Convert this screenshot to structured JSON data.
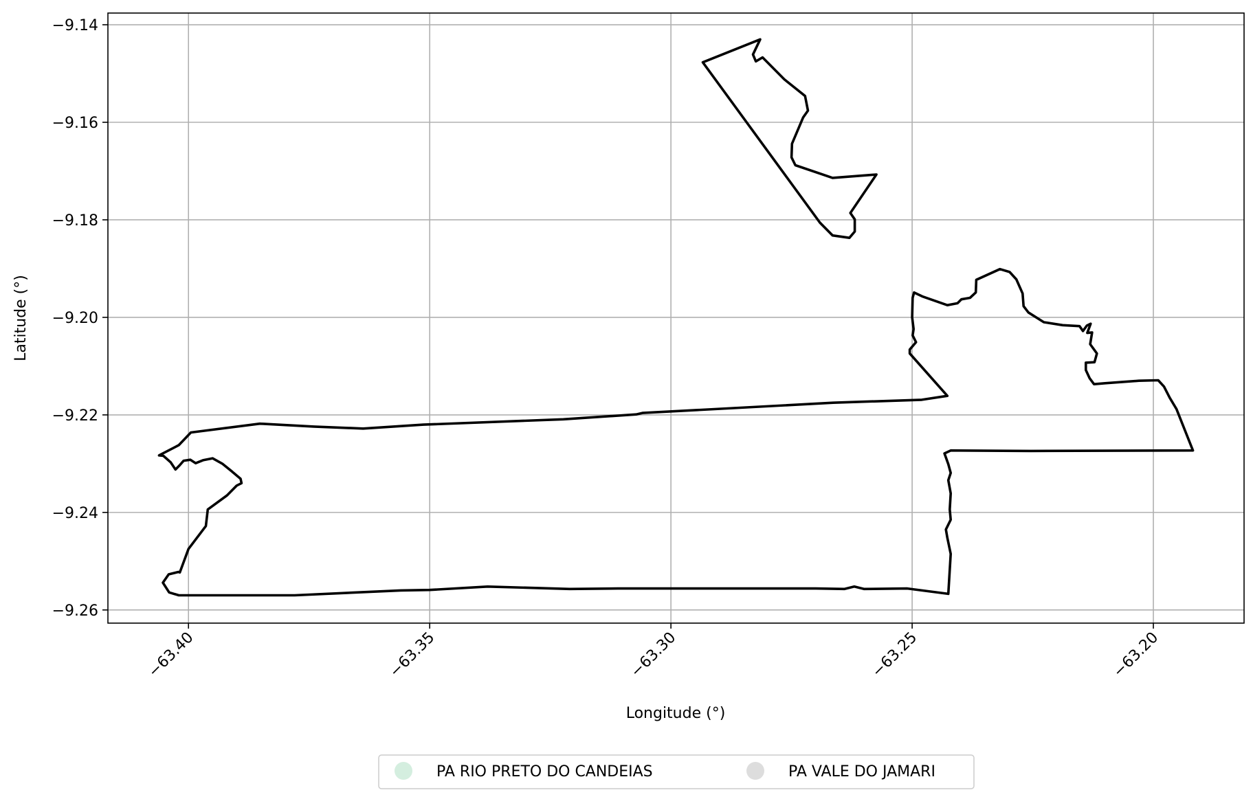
{
  "chart_data": {
    "type": "map",
    "xlabel": "Longitude (°)",
    "ylabel": "Latitude (°)",
    "xlim": [
      -63.4167,
      -63.1812
    ],
    "ylim": [
      -9.2627,
      -9.1376
    ],
    "x_ticks": [
      {
        "value": -63.4,
        "label": "−63.40"
      },
      {
        "value": -63.35,
        "label": "−63.35"
      },
      {
        "value": -63.3,
        "label": "−63.30"
      },
      {
        "value": -63.25,
        "label": "−63.25"
      },
      {
        "value": -63.2,
        "label": "−63.20"
      }
    ],
    "y_ticks": [
      {
        "value": -9.14,
        "label": "−9.14"
      },
      {
        "value": -9.16,
        "label": "−9.16"
      },
      {
        "value": -9.18,
        "label": "−9.18"
      },
      {
        "value": -9.2,
        "label": "−9.20"
      },
      {
        "value": -9.22,
        "label": "−9.22"
      },
      {
        "value": -9.24,
        "label": "−9.24"
      },
      {
        "value": -9.26,
        "label": "−9.26"
      }
    ],
    "grid": true,
    "legend": {
      "placement": "bottom-center",
      "items": [
        {
          "label": "PA RIO PRETO DO CANDEIAS",
          "color": "#d4eedf"
        },
        {
          "label": "PA VALE DO JAMARI",
          "color": "#dddddd"
        }
      ]
    },
    "boundary_color": "#000000",
    "polygons": [
      {
        "coords": [
          [
            -63.2934,
            -9.1477
          ],
          [
            -63.2815,
            -9.143
          ],
          [
            -63.283,
            -9.1461
          ],
          [
            -63.2824,
            -9.1475
          ],
          [
            -63.281,
            -9.1467
          ],
          [
            -63.2765,
            -9.1512
          ],
          [
            -63.2722,
            -9.1546
          ],
          [
            -63.2716,
            -9.1576
          ],
          [
            -63.2726,
            -9.159
          ],
          [
            -63.2749,
            -9.1644
          ],
          [
            -63.275,
            -9.1672
          ],
          [
            -63.2742,
            -9.1688
          ],
          [
            -63.2665,
            -9.1714
          ],
          [
            -63.2574,
            -9.1707
          ],
          [
            -63.2628,
            -9.1786
          ],
          [
            -63.2619,
            -9.1799
          ],
          [
            -63.2619,
            -9.1824
          ],
          [
            -63.263,
            -9.1837
          ],
          [
            -63.2665,
            -9.1832
          ],
          [
            -63.2691,
            -9.1806
          ],
          [
            -63.2934,
            -9.1477
          ]
        ]
      },
      {
        "coords": [
          [
            -63.4061,
            -9.2283
          ],
          [
            -63.402,
            -9.2262
          ],
          [
            -63.3995,
            -9.2236
          ],
          [
            -63.3852,
            -9.2218
          ],
          [
            -63.374,
            -9.2224
          ],
          [
            -63.3638,
            -9.2228
          ],
          [
            -63.3513,
            -9.222
          ],
          [
            -63.3223,
            -9.2209
          ],
          [
            -63.3072,
            -9.2199
          ],
          [
            -63.3059,
            -9.2196
          ],
          [
            -63.287,
            -9.2186
          ],
          [
            -63.2664,
            -9.2175
          ],
          [
            -63.248,
            -9.2169
          ],
          [
            -63.2427,
            -9.2161
          ],
          [
            -63.2505,
            -9.2074
          ],
          [
            -63.2505,
            -9.2066
          ],
          [
            -63.2492,
            -9.2051
          ],
          [
            -63.2499,
            -9.2037
          ],
          [
            -63.2497,
            -9.2024
          ],
          [
            -63.25,
            -9.2
          ],
          [
            -63.2499,
            -9.196
          ],
          [
            -63.2496,
            -9.1949
          ],
          [
            -63.2479,
            -9.1957
          ],
          [
            -63.2427,
            -9.1975
          ],
          [
            -63.2406,
            -9.1971
          ],
          [
            -63.2398,
            -9.1963
          ],
          [
            -63.238,
            -9.196
          ],
          [
            -63.2368,
            -9.1949
          ],
          [
            -63.2367,
            -9.1923
          ],
          [
            -63.2318,
            -9.1901
          ],
          [
            -63.2298,
            -9.1907
          ],
          [
            -63.2284,
            -9.1922
          ],
          [
            -63.2271,
            -9.1951
          ],
          [
            -63.2269,
            -9.1977
          ],
          [
            -63.2259,
            -9.199
          ],
          [
            -63.2227,
            -9.201
          ],
          [
            -63.2188,
            -9.2016
          ],
          [
            -63.2153,
            -9.2018
          ],
          [
            -63.2146,
            -9.2028
          ],
          [
            -63.2138,
            -9.2017
          ],
          [
            -63.213,
            -9.2013
          ],
          [
            -63.2137,
            -9.2032
          ],
          [
            -63.2127,
            -9.2031
          ],
          [
            -63.2131,
            -9.2055
          ],
          [
            -63.2117,
            -9.2074
          ],
          [
            -63.2122,
            -9.2092
          ],
          [
            -63.214,
            -9.2093
          ],
          [
            -63.214,
            -9.2108
          ],
          [
            -63.2132,
            -9.2125
          ],
          [
            -63.2123,
            -9.2137
          ],
          [
            -63.21,
            -9.2135
          ],
          [
            -63.203,
            -9.213
          ],
          [
            -63.199,
            -9.2129
          ],
          [
            -63.1978,
            -9.2142
          ],
          [
            -63.1966,
            -9.2165
          ],
          [
            -63.1952,
            -9.2188
          ],
          [
            -63.1918,
            -9.2273
          ],
          [
            -63.2254,
            -9.2274
          ],
          [
            -63.242,
            -9.2273
          ],
          [
            -63.2433,
            -9.2279
          ],
          [
            -63.2425,
            -9.2301
          ],
          [
            -63.242,
            -9.2319
          ],
          [
            -63.2425,
            -9.2334
          ],
          [
            -63.242,
            -9.2361
          ],
          [
            -63.2422,
            -9.2394
          ],
          [
            -63.242,
            -9.2415
          ],
          [
            -63.243,
            -9.2435
          ],
          [
            -63.2427,
            -9.2452
          ],
          [
            -63.242,
            -9.2485
          ],
          [
            -63.2425,
            -9.2567
          ],
          [
            -63.251,
            -9.2556
          ],
          [
            -63.26,
            -9.2557
          ],
          [
            -63.262,
            -9.2552
          ],
          [
            -63.264,
            -9.2557
          ],
          [
            -63.27,
            -9.2556
          ],
          [
            -63.3,
            -9.2556
          ],
          [
            -63.311,
            -9.2556
          ],
          [
            -63.321,
            -9.2557
          ],
          [
            -63.338,
            -9.2552
          ],
          [
            -63.35,
            -9.2559
          ],
          [
            -63.356,
            -9.256
          ],
          [
            -63.378,
            -9.257
          ],
          [
            -63.402,
            -9.257
          ],
          [
            -63.404,
            -9.2564
          ],
          [
            -63.4053,
            -9.2544
          ],
          [
            -63.4041,
            -9.2527
          ],
          [
            -63.4021,
            -9.2522
          ],
          [
            -63.4018,
            -9.2523
          ],
          [
            -63.4,
            -9.2475
          ],
          [
            -63.3964,
            -9.2428
          ],
          [
            -63.396,
            -9.2394
          ],
          [
            -63.392,
            -9.2365
          ],
          [
            -63.39,
            -9.2345
          ],
          [
            -63.389,
            -9.234
          ],
          [
            -63.3892,
            -9.2331
          ],
          [
            -63.391,
            -9.2316
          ],
          [
            -63.393,
            -9.23
          ],
          [
            -63.395,
            -9.2289
          ],
          [
            -63.397,
            -9.2293
          ],
          [
            -63.3985,
            -9.2299
          ],
          [
            -63.3996,
            -9.2292
          ],
          [
            -63.401,
            -9.2294
          ],
          [
            -63.4018,
            -9.2303
          ],
          [
            -63.4027,
            -9.2312
          ],
          [
            -63.4037,
            -9.2297
          ],
          [
            -63.4052,
            -9.2284
          ],
          [
            -63.4061,
            -9.2283
          ]
        ]
      }
    ]
  }
}
